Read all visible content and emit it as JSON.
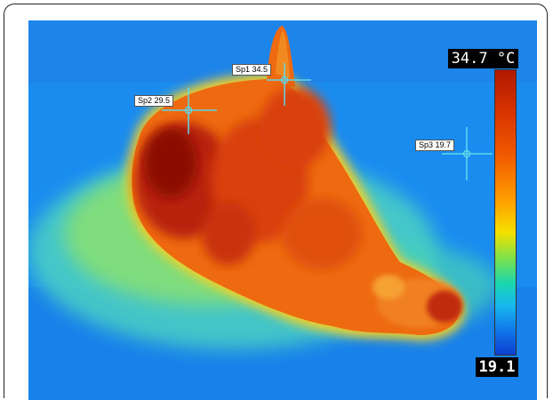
{
  "scale": {
    "max_label": "34.7 °C",
    "min_label": "19.1",
    "max_value": 34.7,
    "min_value": 19.1,
    "unit": "°C"
  },
  "spots": [
    {
      "id": "sp1",
      "label": "Sp1 34.5",
      "value": 34.5
    },
    {
      "id": "sp2",
      "label": "Sp2 29.5",
      "value": 29.5
    },
    {
      "id": "sp3",
      "label": "Sp3 19.7",
      "value": 19.7
    }
  ],
  "colors": {
    "background_cold": "#1a8cf0",
    "hot_body": "#e35a10",
    "hottest": "#a01800",
    "warm_green": "#7de24a"
  }
}
